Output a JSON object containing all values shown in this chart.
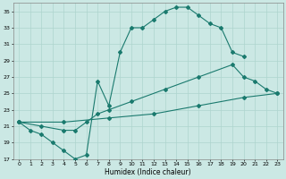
{
  "title": "",
  "xlabel": "Humidex (Indice chaleur)",
  "bg_color": "#cbe8e4",
  "line_color": "#1a7a6e",
  "grid_color": "#aed4ce",
  "xlim": [
    -0.5,
    23.5
  ],
  "ylim": [
    17,
    36
  ],
  "yticks": [
    17,
    19,
    21,
    23,
    25,
    27,
    29,
    31,
    33,
    35
  ],
  "xticks": [
    0,
    1,
    2,
    3,
    4,
    5,
    6,
    7,
    8,
    9,
    10,
    11,
    12,
    13,
    14,
    15,
    16,
    17,
    18,
    19,
    20,
    21,
    22,
    23
  ],
  "line1_x": [
    0,
    1,
    2,
    3,
    4,
    5,
    6,
    7,
    8,
    9,
    10,
    11,
    12,
    13,
    14,
    15,
    16,
    17,
    18,
    19,
    20
  ],
  "line1_y": [
    21.5,
    20.5,
    20.0,
    19.0,
    18.0,
    17.0,
    17.5,
    26.5,
    23.5,
    30.0,
    33.0,
    33.0,
    34.0,
    35.0,
    35.5,
    35.5,
    34.5,
    33.5,
    33.0,
    30.0,
    29.5
  ],
  "line2_x": [
    0,
    2,
    4,
    5,
    6,
    7,
    8,
    10,
    13,
    16,
    19,
    20,
    21,
    22,
    23
  ],
  "line2_y": [
    21.5,
    21.0,
    20.5,
    20.5,
    21.5,
    22.5,
    23.0,
    24.0,
    25.5,
    27.0,
    28.5,
    27.0,
    26.5,
    25.5,
    25.0
  ],
  "line3_x": [
    0,
    4,
    8,
    12,
    16,
    20,
    23
  ],
  "line3_y": [
    21.5,
    21.5,
    22.0,
    22.5,
    23.5,
    24.5,
    25.0
  ]
}
